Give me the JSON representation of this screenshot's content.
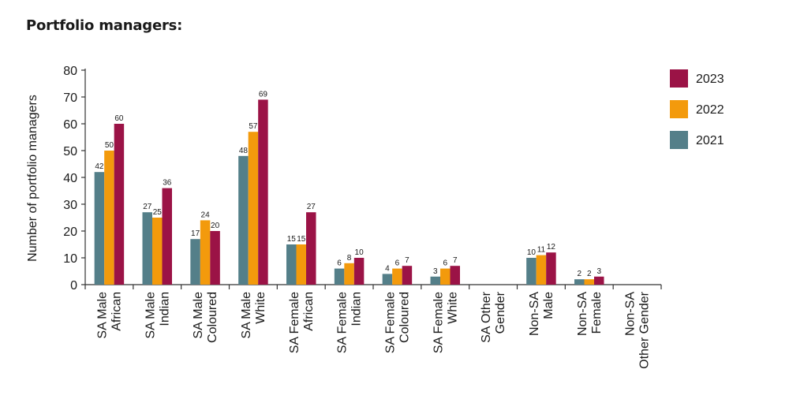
{
  "title": "Portfolio managers:",
  "colors": {
    "2023": "#9b1346",
    "2022": "#f39a0c",
    "2021": "#547f89",
    "axis": "#333333"
  },
  "chart_data": {
    "type": "bar",
    "title": "Portfolio managers:",
    "ylabel": "Number of portfolio managers",
    "xlabel": "",
    "ylim": [
      0,
      80
    ],
    "yticks": [
      0,
      10,
      20,
      30,
      40,
      50,
      60,
      70,
      80
    ],
    "legend_position": "right",
    "grid": false,
    "categories": [
      [
        "SA Male",
        "African"
      ],
      [
        "SA Male",
        "Indian"
      ],
      [
        "SA Male",
        "Coloured"
      ],
      [
        "SA Male",
        "White"
      ],
      [
        "SA Female",
        "African"
      ],
      [
        "SA Female",
        "Indian"
      ],
      [
        "SA Female",
        "Coloured"
      ],
      [
        "SA Female",
        "White"
      ],
      [
        "SA Other",
        "Gender"
      ],
      [
        "Non-SA",
        "Male"
      ],
      [
        "Non-SA",
        "Female"
      ],
      [
        "Non-SA",
        "Other Gender"
      ]
    ],
    "series": [
      {
        "name": "2021",
        "color": "#547f89",
        "values": [
          42,
          27,
          17,
          48,
          15,
          6,
          4,
          3,
          null,
          10,
          2,
          null
        ]
      },
      {
        "name": "2022",
        "color": "#f39a0c",
        "values": [
          50,
          25,
          24,
          57,
          15,
          8,
          6,
          6,
          null,
          11,
          2,
          null
        ]
      },
      {
        "name": "2023",
        "color": "#9b1346",
        "values": [
          60,
          36,
          20,
          69,
          27,
          10,
          7,
          7,
          null,
          12,
          3,
          null
        ]
      }
    ],
    "legend_order": [
      "2023",
      "2022",
      "2021"
    ]
  }
}
